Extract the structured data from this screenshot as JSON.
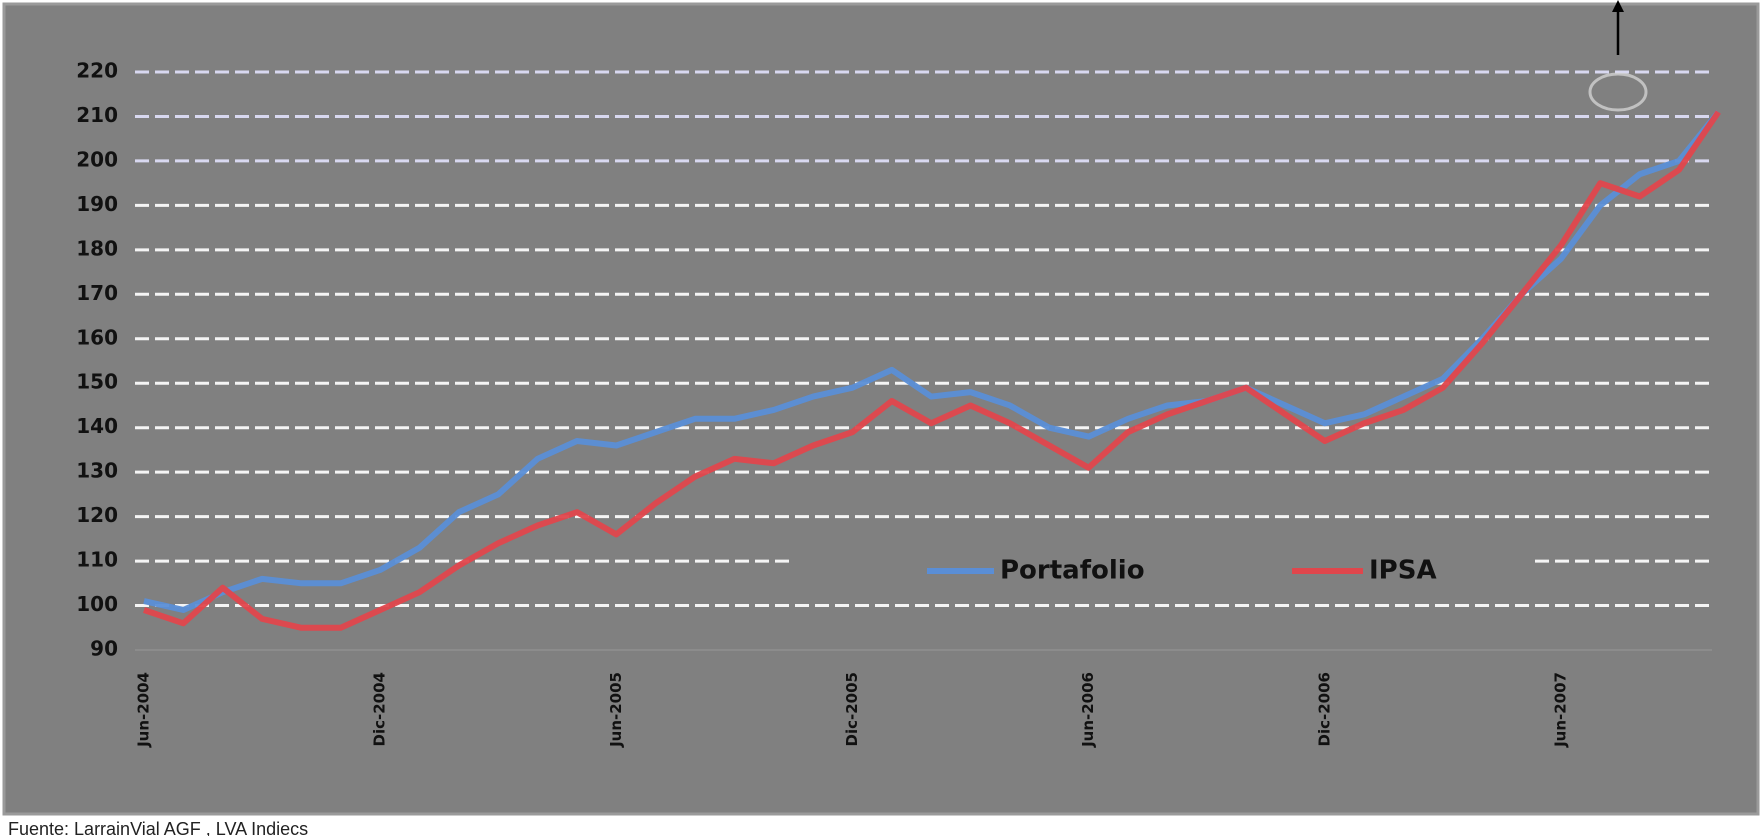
{
  "chart_data": {
    "type": "line",
    "categories": [
      "Jun-2004",
      null,
      null,
      null,
      null,
      null,
      "Dic-2004",
      null,
      null,
      null,
      null,
      null,
      "Jun-2005",
      null,
      null,
      null,
      null,
      null,
      "Dic-2005",
      null,
      null,
      null,
      null,
      null,
      "Jun-2006",
      null,
      null,
      null,
      null,
      null,
      "Dic-2006",
      null,
      null,
      null,
      null,
      null,
      "Jun-2007",
      null,
      null,
      null,
      null
    ],
    "series": [
      {
        "name": "Portafolio",
        "color": "#5a8ed6",
        "values": [
          101,
          99,
          103,
          106,
          105,
          105,
          108,
          113,
          121,
          125,
          133,
          137,
          136,
          139,
          142,
          142,
          144,
          147,
          149,
          153,
          147,
          148,
          145,
          140,
          138,
          142,
          145,
          146,
          149,
          145,
          141,
          143,
          147,
          151,
          160,
          170,
          178,
          190,
          197,
          200,
          211
        ]
      },
      {
        "name": "IPSA",
        "color": "#e0464c",
        "values": [
          99,
          96,
          104,
          97,
          95,
          95,
          99,
          103,
          109,
          114,
          118,
          121,
          116,
          123,
          129,
          133,
          132,
          136,
          139,
          146,
          141,
          145,
          141,
          136,
          131,
          139,
          143,
          146,
          149,
          143,
          137,
          141,
          144,
          149,
          159,
          170,
          181,
          195,
          192,
          198,
          211
        ]
      }
    ],
    "ylim": [
      90,
      220
    ],
    "yticks": [
      90,
      100,
      110,
      120,
      130,
      140,
      150,
      160,
      170,
      180,
      190,
      200,
      210,
      220
    ],
    "grid": true,
    "source": "Fuente: LarrainVial AGF , LVA Indiecs"
  }
}
